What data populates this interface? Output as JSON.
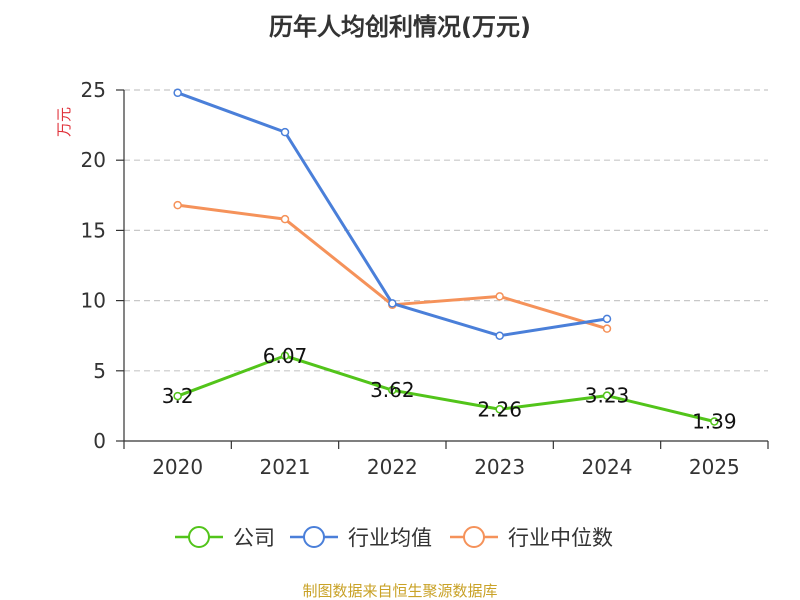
{
  "chart_data": {
    "type": "line",
    "title": "历年人均创利情况(万元)",
    "ylabel": "万元",
    "xlabel": "",
    "categories": [
      "2020",
      "2021",
      "2022",
      "2023",
      "2024",
      "2025"
    ],
    "ylim": [
      0,
      25
    ],
    "yticks": [
      0,
      5,
      10,
      15,
      20,
      25
    ],
    "grid": true,
    "legend_position": "bottom",
    "series": [
      {
        "name": "公司",
        "color": "#52c41a",
        "values": [
          3.2,
          6.07,
          3.62,
          2.26,
          3.23,
          1.39
        ],
        "labels": [
          "3.2",
          "6.07",
          "3.62",
          "2.26",
          "3.23",
          "1.39"
        ],
        "show_labels": true
      },
      {
        "name": "行业均值",
        "color": "#4a7fd9",
        "values": [
          24.8,
          22.0,
          9.8,
          7.5,
          8.7,
          null
        ],
        "show_labels": false
      },
      {
        "name": "行业中位数",
        "color": "#f5925a",
        "values": [
          16.8,
          15.8,
          9.7,
          10.3,
          8.0,
          null
        ],
        "show_labels": false
      }
    ]
  },
  "source": "制图数据来自恒生聚源数据库",
  "colors": {
    "ylabel": "#e0313a",
    "source": "#c9a227",
    "axis": "#333333",
    "grid": "#c8c8c8"
  }
}
